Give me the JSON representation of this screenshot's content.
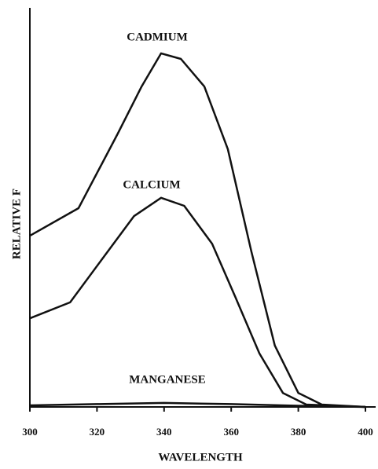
{
  "chart_data": {
    "type": "line",
    "xlabel": "WAVELENGTH",
    "ylabel": "RELATIVE F",
    "xlim": [
      300,
      400
    ],
    "xticks": [
      300,
      320,
      340,
      360,
      380,
      400
    ],
    "ylim": [
      0,
      100
    ],
    "series": [
      {
        "name": "CADMIUM",
        "color": "#111111",
        "x": [
          300,
          314.5,
          326.2,
          333.3,
          339.1,
          345,
          352,
          359,
          366,
          373,
          380,
          387,
          400
        ],
        "values": [
          42.9,
          49.8,
          68.5,
          80.3,
          88.6,
          87.2,
          80.3,
          64.6,
          39,
          15.4,
          3.5,
          0.6,
          0
        ]
      },
      {
        "name": "CALCIUM",
        "color": "#111111",
        "x": [
          300,
          312,
          321.5,
          331,
          339.1,
          346,
          354.3,
          361.4,
          368.4,
          375.4,
          382.4,
          400
        ],
        "values": [
          22.2,
          26.2,
          37,
          47.8,
          52.4,
          50.4,
          40.9,
          27.2,
          13.4,
          3.5,
          0.6,
          0
        ]
      },
      {
        "name": "MANGANESE",
        "color": "#111111",
        "x": [
          300,
          320,
          340,
          360,
          380,
          400
        ],
        "values": [
          0.4,
          0.7,
          1,
          0.7,
          0.3,
          0
        ]
      }
    ]
  }
}
